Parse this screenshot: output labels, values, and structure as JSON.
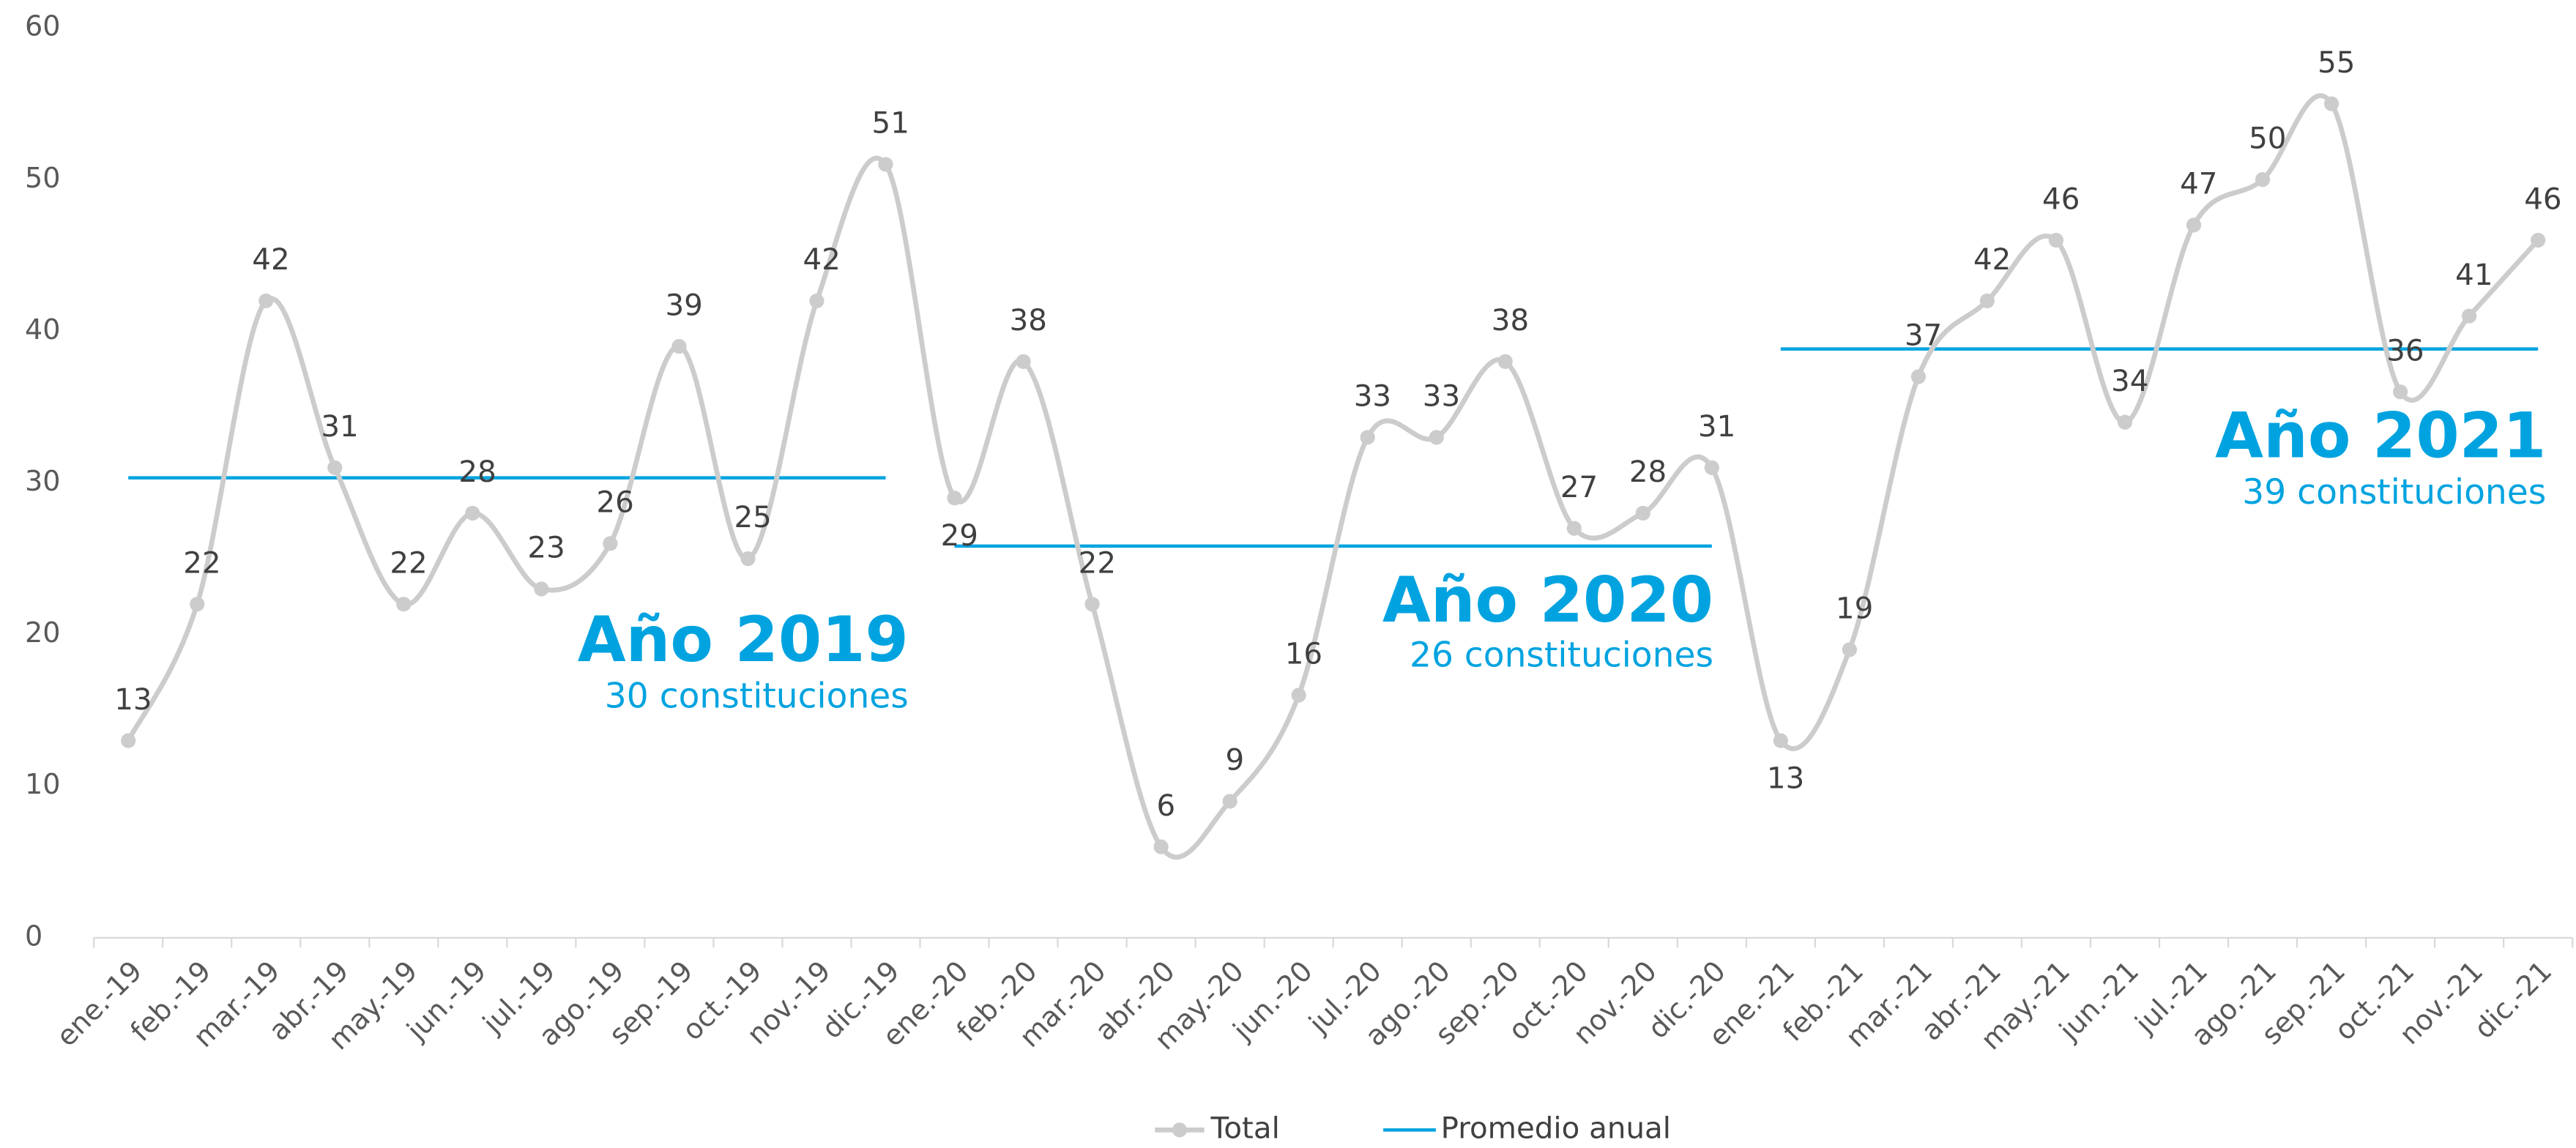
{
  "chart_data": {
    "type": "line",
    "categories": [
      "ene.-19",
      "feb.-19",
      "mar.-19",
      "abr.-19",
      "may.-19",
      "jun.-19",
      "jul.-19",
      "ago.-19",
      "sep.-19",
      "oct.-19",
      "nov.-19",
      "dic.-19",
      "ene.-20",
      "feb.-20",
      "mar.-20",
      "abr.-20",
      "may.-20",
      "jun.-20",
      "jul.-20",
      "ago.-20",
      "sep.-20",
      "oct.-20",
      "nov.-20",
      "dic.-20",
      "ene.-21",
      "feb.-21",
      "mar.-21",
      "abr.-21",
      "may.-21",
      "jun.-21",
      "jul.-21",
      "ago.-21",
      "sep.-21",
      "oct.-21",
      "nov.-21",
      "dic.-21"
    ],
    "series": [
      {
        "name": "Total",
        "color": "#cccccc",
        "values": [
          13,
          22,
          42,
          31,
          22,
          28,
          23,
          26,
          39,
          25,
          42,
          51,
          29,
          38,
          22,
          6,
          9,
          16,
          33,
          33,
          38,
          27,
          28,
          31,
          13,
          19,
          37,
          42,
          46,
          34,
          47,
          50,
          55,
          36,
          41,
          46
        ]
      },
      {
        "name": "Promedio anual",
        "color": "#00a3e0",
        "values": [
          30.33,
          30.33,
          30.33,
          30.33,
          30.33,
          30.33,
          30.33,
          30.33,
          30.33,
          30.33,
          30.33,
          30.33,
          25.83,
          25.83,
          25.83,
          25.83,
          25.83,
          25.83,
          25.83,
          25.83,
          25.83,
          25.83,
          25.83,
          25.83,
          38.83,
          38.83,
          38.83,
          38.83,
          38.83,
          38.83,
          38.83,
          38.83,
          38.83,
          38.83,
          38.83,
          38.83
        ]
      }
    ],
    "annotations": [
      {
        "title": "Año 2019",
        "text": "30 constituciones"
      },
      {
        "title": "Año 2020",
        "text": "26 constituciones"
      },
      {
        "title": "Año 2021",
        "text": "39 constituciones"
      }
    ],
    "ylim": [
      0,
      60
    ],
    "yticks": [
      0,
      10,
      20,
      30,
      40,
      50,
      60
    ],
    "grid": false,
    "legend": "bottom"
  }
}
